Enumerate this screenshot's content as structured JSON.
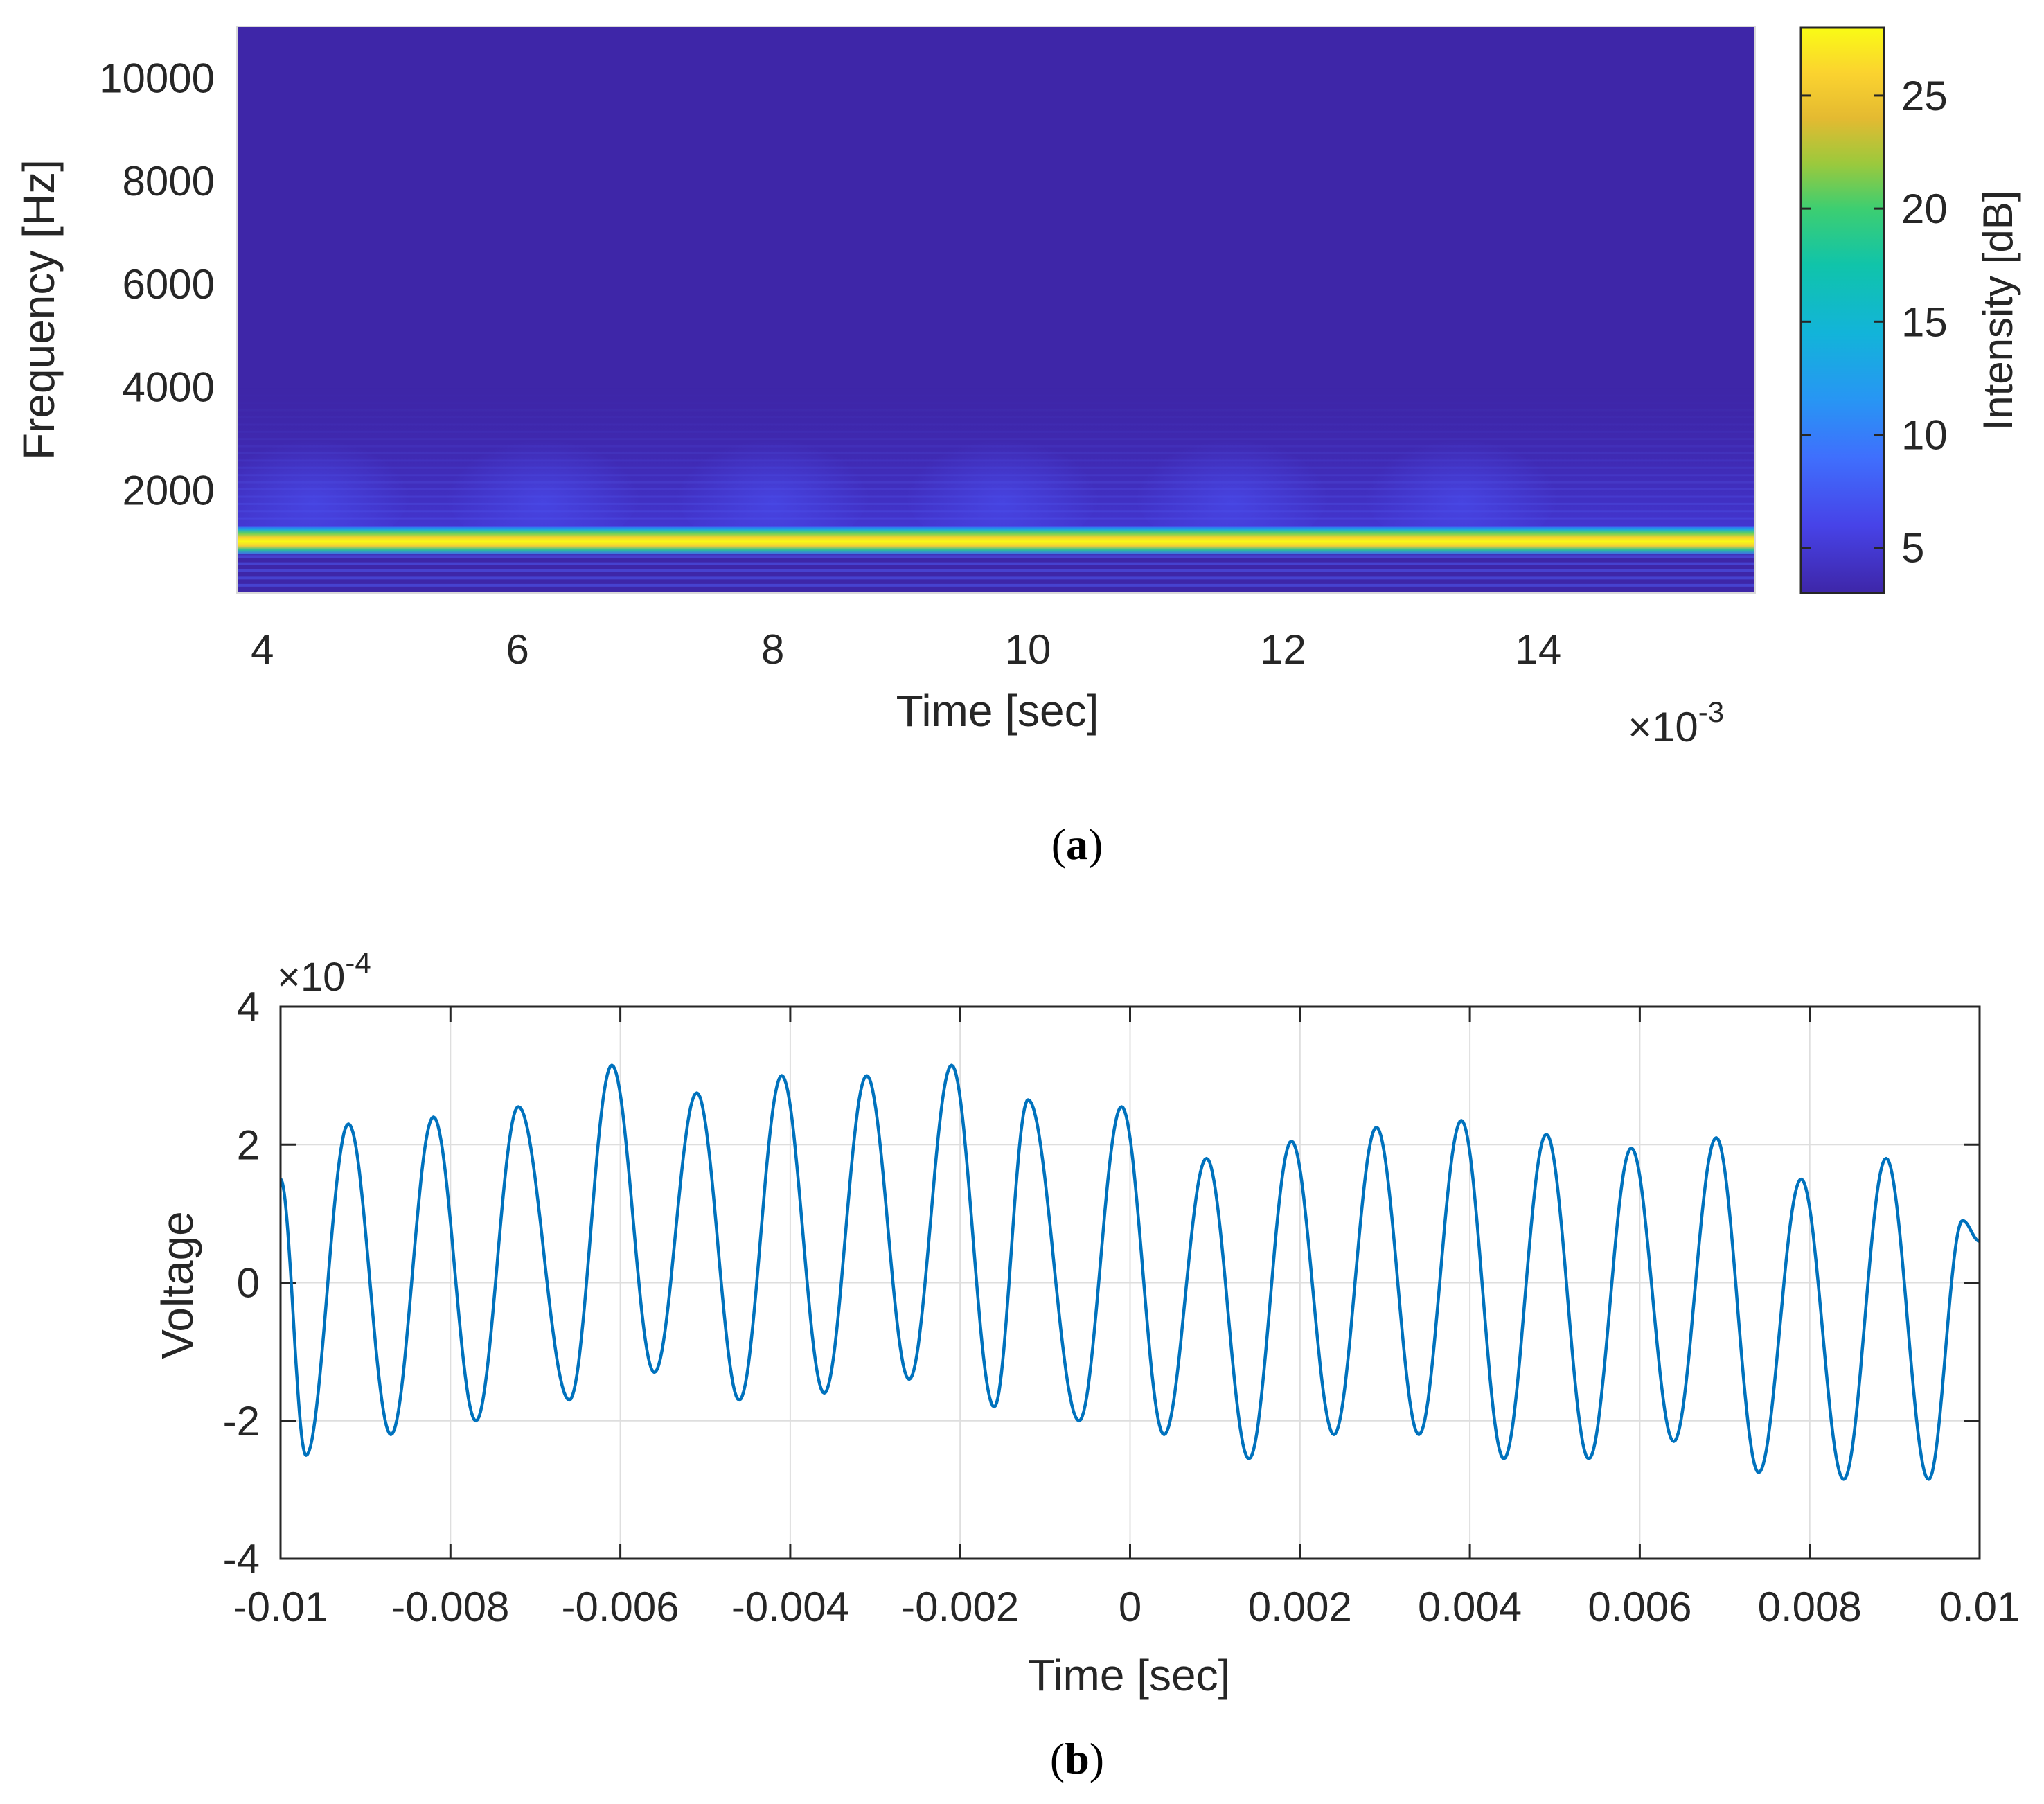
{
  "chart_data": [
    {
      "id": "a",
      "type": "heatmap",
      "caption": "a",
      "xlabel": "Time [sec]",
      "ylabel": "Frequency [Hz]",
      "x_exponent_label": "×10",
      "x_exponent": "-3",
      "xlim": [
        3.8,
        15.7
      ],
      "ylim": [
        0,
        11000
      ],
      "xticks": [
        4,
        6,
        8,
        10,
        12,
        14
      ],
      "xtick_labels": [
        "4",
        "6",
        "8",
        "10",
        "12",
        "14"
      ],
      "yticks": [
        2000,
        4000,
        6000,
        8000,
        10000
      ],
      "ytick_labels": [
        "2000",
        "4000",
        "6000",
        "8000",
        "10000"
      ],
      "colorbar": {
        "label": "Intensity [dB]",
        "range": [
          3,
          28
        ],
        "ticks": [
          5,
          10,
          15,
          20,
          25
        ],
        "tick_labels": [
          "5",
          "10",
          "15",
          "20",
          "25"
        ],
        "colormap": "parula"
      },
      "dominant_band_hz": [
        750,
        1300
      ],
      "dominant_intensity_db": 27,
      "background_intensity_db": 4,
      "bright_patch_times": [
        4.4,
        6.2,
        8.0,
        9.8,
        11.6,
        13.4
      ],
      "harmonic_band_max_hz": 4000
    },
    {
      "id": "b",
      "type": "line",
      "caption": "b",
      "xlabel": "Time [sec]",
      "ylabel": "Voltage",
      "y_exponent_label": "×10",
      "y_exponent": "-4",
      "xlim": [
        -0.01,
        0.01
      ],
      "ylim": [
        -4,
        4
      ],
      "xticks": [
        -0.01,
        -0.008,
        -0.006,
        -0.004,
        -0.002,
        0,
        0.002,
        0.004,
        0.006,
        0.008,
        0.01
      ],
      "xtick_labels": [
        "-0.01",
        "-0.008",
        "-0.006",
        "-0.004",
        "-0.002",
        "0",
        "0.002",
        "0.004",
        "0.006",
        "0.008",
        "0.01"
      ],
      "yticks": [
        -4,
        -2,
        0,
        2,
        4
      ],
      "ytick_labels": [
        "-4",
        "-2",
        "0",
        "2",
        "4"
      ],
      "grid": true,
      "series": [
        {
          "name": "Voltage",
          "color": "#0072bd",
          "initial_value": 1.5,
          "final_value": 0.6,
          "peaks": [
            {
              "t": -0.0092,
              "v": 2.3
            },
            {
              "t": -0.0082,
              "v": 2.4
            },
            {
              "t": -0.0072,
              "v": 2.55
            },
            {
              "t": -0.0061,
              "v": 3.15
            },
            {
              "t": -0.0051,
              "v": 2.75
            },
            {
              "t": -0.0041,
              "v": 3.0
            },
            {
              "t": -0.0031,
              "v": 3.0
            },
            {
              "t": -0.0021,
              "v": 3.15
            },
            {
              "t": -0.0012,
              "v": 2.65
            },
            {
              "t": -0.0001,
              "v": 2.55
            },
            {
              "t": 0.0009,
              "v": 1.8
            },
            {
              "t": 0.0019,
              "v": 2.05
            },
            {
              "t": 0.0029,
              "v": 2.25
            },
            {
              "t": 0.0039,
              "v": 2.35
            },
            {
              "t": 0.0049,
              "v": 2.15
            },
            {
              "t": 0.0059,
              "v": 1.95
            },
            {
              "t": 0.0069,
              "v": 2.1
            },
            {
              "t": 0.0079,
              "v": 1.5
            },
            {
              "t": 0.0089,
              "v": 1.8
            },
            {
              "t": 0.0098,
              "v": 0.9
            }
          ],
          "troughs": [
            {
              "t": -0.0097,
              "v": -2.5
            },
            {
              "t": -0.0087,
              "v": -2.2
            },
            {
              "t": -0.0077,
              "v": -2.0
            },
            {
              "t": -0.0066,
              "v": -1.7
            },
            {
              "t": -0.0056,
              "v": -1.3
            },
            {
              "t": -0.0046,
              "v": -1.7
            },
            {
              "t": -0.0036,
              "v": -1.6
            },
            {
              "t": -0.0026,
              "v": -1.4
            },
            {
              "t": -0.0016,
              "v": -1.8
            },
            {
              "t": -0.0006,
              "v": -2.0
            },
            {
              "t": 0.0004,
              "v": -2.2
            },
            {
              "t": 0.0014,
              "v": -2.55
            },
            {
              "t": 0.0024,
              "v": -2.2
            },
            {
              "t": 0.0034,
              "v": -2.2
            },
            {
              "t": 0.0044,
              "v": -2.55
            },
            {
              "t": 0.0054,
              "v": -2.55
            },
            {
              "t": 0.0064,
              "v": -2.3
            },
            {
              "t": 0.0074,
              "v": -2.75
            },
            {
              "t": 0.0084,
              "v": -2.85
            },
            {
              "t": 0.0094,
              "v": -2.85
            }
          ]
        }
      ]
    }
  ]
}
